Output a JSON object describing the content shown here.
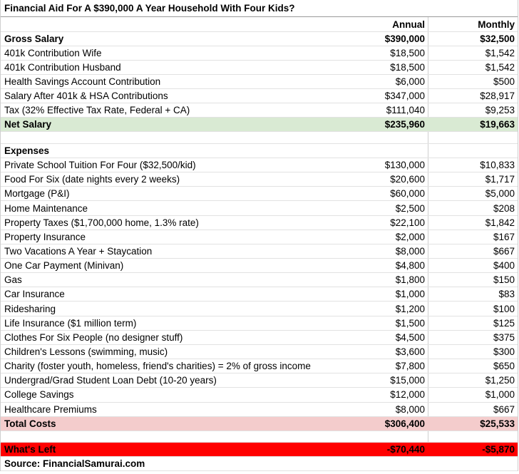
{
  "header": {
    "title": "Financial Aid For A $390,000 A Year Household With Four Kids?",
    "columns": [
      "Annual",
      "Monthly"
    ]
  },
  "income": {
    "gross": [
      "Gross Salary",
      "$390,000",
      "$32,500"
    ],
    "rows": [
      [
        "401k Contribution Wife",
        "$18,500",
        "$1,542"
      ],
      [
        "401k Contribution Husband",
        "$18,500",
        "$1,542"
      ],
      [
        "Health Savings Account Contribution",
        "$6,000",
        "$500"
      ],
      [
        "Salary After 401k & HSA Contributions",
        "$347,000",
        "$28,917"
      ],
      [
        "Tax (32% Effective Tax Rate, Federal + CA)",
        "$111,040",
        "$9,253"
      ]
    ],
    "net": [
      "Net Salary",
      "$235,960",
      "$19,663"
    ]
  },
  "expenses": {
    "heading": "Expenses",
    "rows": [
      [
        "Private School Tuition For Four ($32,500/kid)",
        "$130,000",
        "$10,833"
      ],
      [
        "Food For Six (date nights every 2 weeks)",
        "$20,600",
        "$1,717"
      ],
      [
        "Mortgage (P&I)",
        "$60,000",
        "$5,000"
      ],
      [
        "Home Maintenance",
        "$2,500",
        "$208"
      ],
      [
        "Property Taxes ($1,700,000 home, 1.3% rate)",
        "$22,100",
        "$1,842"
      ],
      [
        "Property Insurance",
        "$2,000",
        "$167"
      ],
      [
        "Two Vacations A Year + Staycation",
        "$8,000",
        "$667"
      ],
      [
        "One Car Payment (Minivan)",
        "$4,800",
        "$400"
      ],
      [
        "Gas",
        "$1,800",
        "$150"
      ],
      [
        "Car Insurance",
        "$1,000",
        "$83"
      ],
      [
        "Ridesharing",
        "$1,200",
        "$100"
      ],
      [
        "Life Insurance ($1 million term)",
        "$1,500",
        "$125"
      ],
      [
        "Clothes For Six People (no designer stuff)",
        "$4,500",
        "$375"
      ],
      [
        "Children's Lessons (swimming, music)",
        "$3,600",
        "$300"
      ],
      [
        "Charity (foster youth, homeless, friend's charities) = 2% of gross income",
        "$7,800",
        "$650"
      ],
      [
        "Undergrad/Grad Student Loan Debt (10-20 years)",
        "$15,000",
        "$1,250"
      ],
      [
        "College Savings",
        "$12,000",
        "$1,000"
      ],
      [
        "Healthcare Premiums",
        "$8,000",
        "$667"
      ]
    ],
    "total": [
      "Total Costs",
      "$306,400",
      "$25,533"
    ]
  },
  "whats_left": [
    "What's Left",
    "-$70,440",
    "-$5,870"
  ],
  "source": "Source: FinancialSamurai.com"
}
